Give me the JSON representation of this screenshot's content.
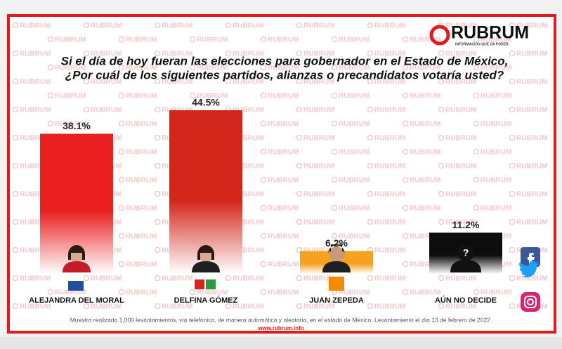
{
  "chart_data": {
    "type": "bar",
    "logo": "RUBRUM",
    "logo_tagline": "INFORMACIÓN QUE DA PODER",
    "title": [
      "Si el día de hoy fueran las elecciones para gobernador en el Estado de México,",
      "¿Por cuál de los siguientes partidos, alianzas o precandidatos votaría usted?"
    ],
    "categories": [
      "ALEJANDRA DEL MORAL",
      "DELFINA GÓMEZ",
      "JUAN ZEPEDA",
      "AÚN NO DECIDE"
    ],
    "values": [
      38.1,
      44.5,
      6.2,
      11.2
    ],
    "value_labels": [
      "38.1%",
      "44.5%",
      "6.2%",
      "11.2%"
    ],
    "colors": [
      "#ea1f1f",
      "#d3261b",
      "#f7a21e",
      "#0d0d0d"
    ],
    "footnote": "Muestra realizada 1,000 levantamientos, vía telefónica, de manera automática y aleatoria, en el estado de México. Levantamiento el día 13 de febrero de 2022.",
    "website": "www.rubrum.info"
  }
}
